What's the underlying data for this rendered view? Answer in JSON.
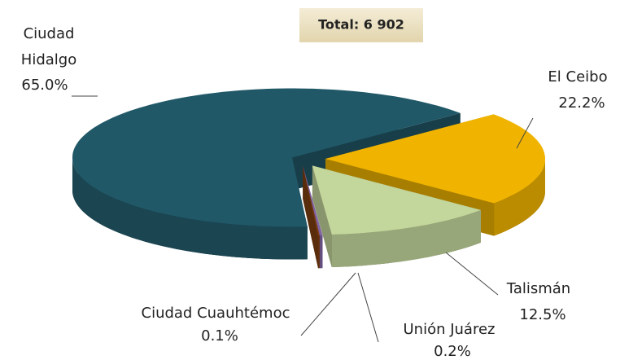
{
  "chart_data": {
    "type": "pie3d",
    "annotation": "Total: 6 902",
    "categories": [
      "El Ceibo",
      "Talismán",
      "Unión Juárez",
      "Ciudad Cuauhtémoc",
      "Ciudad Hidalgo"
    ],
    "values": [
      22.2,
      12.5,
      0.2,
      0.1,
      65.0
    ],
    "value_labels": [
      "22.2%",
      "12.5%",
      "0.2%",
      "0.1%",
      "65.0%"
    ],
    "colors": [
      "#f0b400",
      "#c3d69b",
      "#8064a2",
      "#7f3f10",
      "#215868"
    ]
  }
}
